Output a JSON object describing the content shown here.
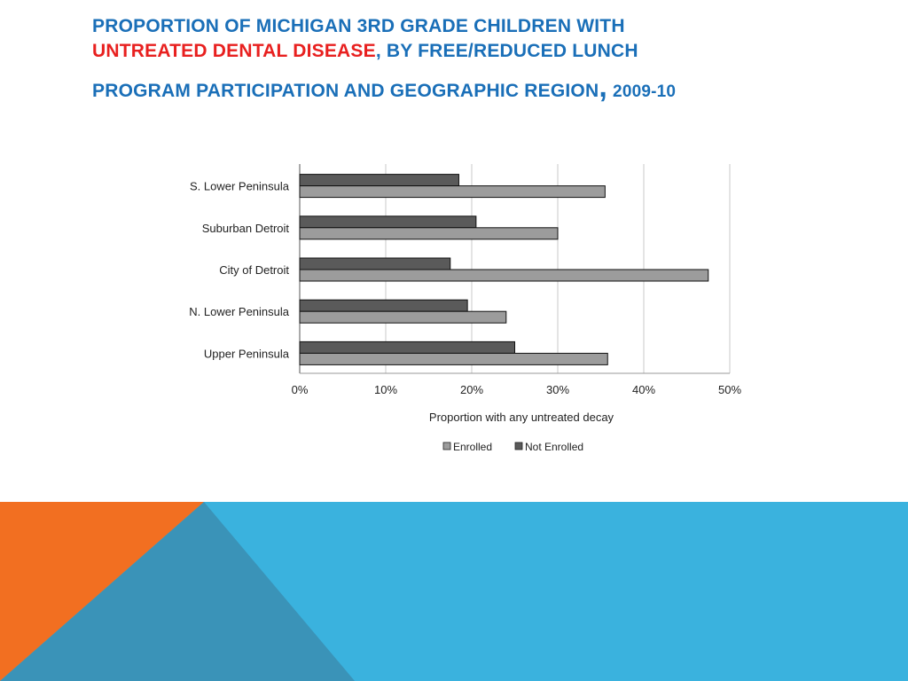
{
  "title": {
    "part1": "PROPORTION OF MICHIGAN 3RD GRADE CHILDREN WITH",
    "highlight": "UNTREATED DENTAL DISEASE",
    "part2": ", BY FREE/REDUCED LUNCH",
    "part3": "PROGRAM PARTICIPATION AND GEOGRAPHIC REGION",
    "comma": ",",
    "year": "2009-10"
  },
  "colors": {
    "title_blue": "#1a6fb8",
    "title_red": "#e8201f",
    "enrolled": "#9c9c9c",
    "not_enrolled": "#5a5a5a",
    "deco_orange": "#f26f21",
    "deco_light_blue": "#3ab2de",
    "deco_dark_blue": "#3a93b8"
  },
  "chart_data": {
    "type": "bar",
    "orientation": "horizontal",
    "categories": [
      "S. Lower Peninsula",
      "Suburban Detroit",
      "City of Detroit",
      "N. Lower Peninsula",
      "Upper Peninsula"
    ],
    "series": [
      {
        "name": "Not Enrolled",
        "values": [
          18.5,
          20.5,
          17.5,
          19.5,
          25
        ]
      },
      {
        "name": "Enrolled",
        "values": [
          35.5,
          30,
          47.5,
          24,
          35.8
        ]
      }
    ],
    "legend": [
      "Enrolled",
      "Not Enrolled"
    ],
    "legend_position": "bottom",
    "xlabel": "Proportion with any untreated decay",
    "xlim": [
      0,
      50
    ],
    "xticks": [
      0,
      10,
      20,
      30,
      40,
      50
    ],
    "xtick_labels": [
      "0%",
      "10%",
      "20%",
      "30%",
      "40%",
      "50%"
    ],
    "grid": true
  }
}
